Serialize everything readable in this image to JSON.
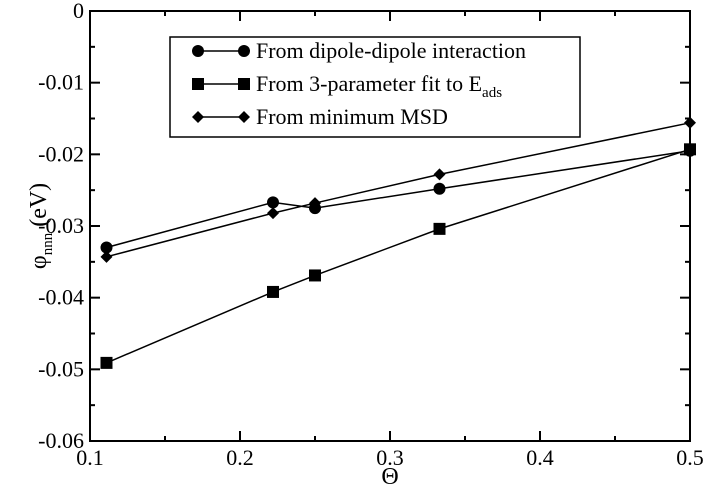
{
  "chart_data": {
    "type": "line",
    "xlabel": "Θ",
    "ylabel": {
      "main": "φ",
      "subscript": "nnn",
      "suffix": " (eV)"
    },
    "xlim": [
      0.1,
      0.5
    ],
    "ylim": [
      -0.06,
      0
    ],
    "x_ticks": [
      "0.1",
      "0.2",
      "0.3",
      "0.4",
      "0.5"
    ],
    "y_ticks": [
      "0",
      "-0.01",
      "-0.02",
      "-0.03",
      "-0.04",
      "-0.05",
      "-0.06"
    ],
    "x_tick_values": [
      0.1,
      0.2,
      0.3,
      0.4,
      0.5
    ],
    "y_tick_values": [
      0,
      -0.01,
      -0.02,
      -0.03,
      -0.04,
      -0.05,
      -0.06
    ],
    "grid": false,
    "legend_placement": "top-center",
    "series": [
      {
        "name": "From dipole-dipole interaction",
        "marker": "circle",
        "x": [
          0.111,
          0.222,
          0.25,
          0.333,
          0.5
        ],
        "y": [
          -0.033,
          -0.0267,
          -0.0275,
          -0.0248,
          -0.0195
        ]
      },
      {
        "name": "From 3-parameter fit to E",
        "name_subscript": "ads",
        "marker": "square",
        "x": [
          0.111,
          0.222,
          0.25,
          0.333,
          0.5
        ],
        "y": [
          -0.0491,
          -0.0392,
          -0.0369,
          -0.0304,
          -0.0193
        ]
      },
      {
        "name": "From minimum MSD",
        "marker": "diamond",
        "x": [
          0.111,
          0.222,
          0.25,
          0.333,
          0.5
        ],
        "y": [
          -0.0343,
          -0.0282,
          -0.0268,
          -0.0228,
          -0.0156
        ]
      }
    ]
  }
}
